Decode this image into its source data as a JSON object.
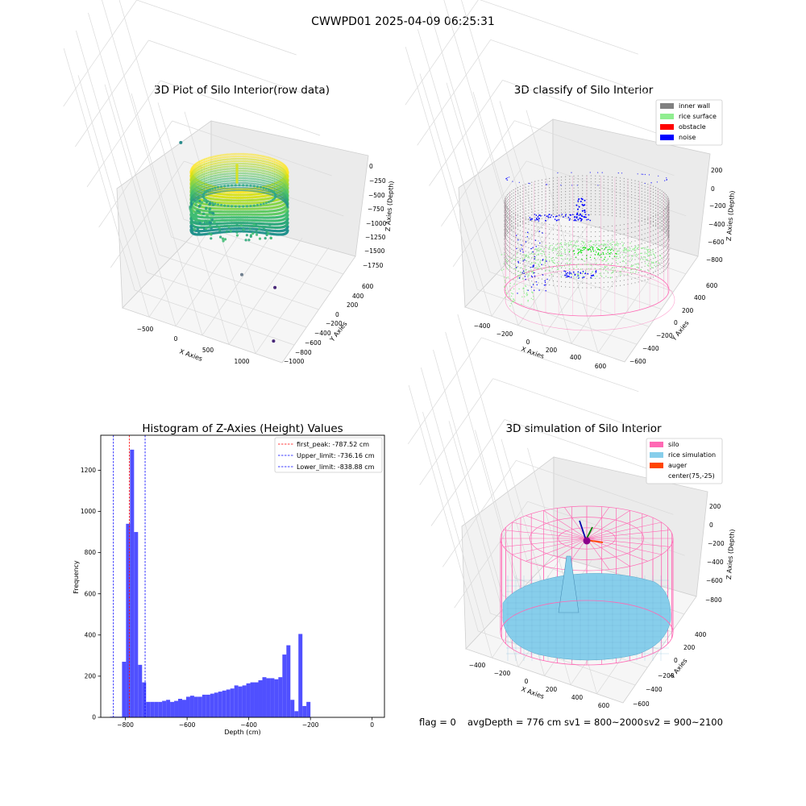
{
  "figure": {
    "suptitle": "CWWPD01 2025-04-09 06:25:31",
    "status": {
      "flag": "flag = 0",
      "avg_depth": "avgDepth = 776 cm",
      "sv1": "sv1 = 800~2000",
      "sv2": "sv2 = 900~2100"
    }
  },
  "colors": {
    "inner_wall": "#808080",
    "rice_surface": "#90ee90",
    "obstacle": "#ff0000",
    "noise": "#0000ff",
    "silo": "#ff69b4",
    "rice_simulation": "#87ceeb",
    "auger": "#ff4500",
    "hist_bar": "#5050ff"
  },
  "chart_data": [
    {
      "type": "scatter",
      "title": "3D Plot of Silo Interior(row data)",
      "xlabel": "X Axies",
      "ylabel": "Y Axies",
      "zlabel": "Z Axies (Depth)",
      "x_ticks": [
        "−500",
        "0",
        "500",
        "1000"
      ],
      "y_ticks": [
        "600",
        "400",
        "200",
        "0",
        "−200",
        "−400",
        "−600",
        "−800",
        "−1000"
      ],
      "z_ticks": [
        "0",
        "−250",
        "−500",
        "−750",
        "−1000",
        "−1250",
        "−1500",
        "−1750"
      ],
      "xlim": [
        -750,
        1250
      ],
      "ylim": [
        -1050,
        650
      ],
      "zlim": [
        -1850,
        100
      ],
      "colormap": "viridis",
      "outliers": [
        {
          "x": -550,
          "y": -900,
          "z": -1800
        },
        {
          "x": 100,
          "y": -700,
          "z": -1700
        },
        {
          "x": -300,
          "y": -600,
          "z": -1450
        },
        {
          "x": 1050,
          "y": 500,
          "z": -1250
        }
      ]
    },
    {
      "type": "scatter",
      "title": "3D classify of Silo Interior",
      "xlabel": "X Axies",
      "ylabel": "Y Axies",
      "zlabel": "Z Axies (Depth)",
      "x_ticks": [
        "−400",
        "−200",
        "0",
        "200",
        "400",
        "600"
      ],
      "y_ticks": [
        "600",
        "400",
        "200",
        "0",
        "−200",
        "−400",
        "−600"
      ],
      "z_ticks": [
        "200",
        "0",
        "−200",
        "−400",
        "−600",
        "−800"
      ],
      "xlim": [
        -500,
        700
      ],
      "ylim": [
        -650,
        650
      ],
      "zlim": [
        -950,
        280
      ],
      "legend_position": "upper-right",
      "legend": [
        {
          "label": "inner wall",
          "color": "#808080"
        },
        {
          "label": "rice surface",
          "color": "#90ee90"
        },
        {
          "label": "obstacle",
          "color": "#ff0000"
        },
        {
          "label": "noise",
          "color": "#0000ff"
        }
      ]
    },
    {
      "type": "bar",
      "title": "Histogram of Z-Axies (Height) Values",
      "xlabel": "Depth (cm)",
      "ylabel": "Frequency",
      "xlim": [
        -880,
        40
      ],
      "ylim": [
        0,
        1370
      ],
      "x_ticks": [
        -800,
        -600,
        -400,
        -200,
        0
      ],
      "y_ticks": [
        0,
        200,
        400,
        600,
        800,
        1000,
        1200
      ],
      "bin_start": -850,
      "bin_width": 13,
      "values": [
        3,
        3,
        3,
        270,
        940,
        1300,
        900,
        255,
        170,
        75,
        75,
        75,
        75,
        80,
        85,
        75,
        80,
        90,
        85,
        100,
        105,
        100,
        100,
        110,
        110,
        115,
        120,
        125,
        130,
        135,
        140,
        155,
        150,
        155,
        165,
        170,
        170,
        180,
        195,
        190,
        190,
        185,
        195,
        305,
        350,
        85,
        30,
        405,
        55,
        75
      ],
      "lines": [
        {
          "label": "first_peak: -787.52 cm",
          "x": -787.52,
          "color": "#ff0000"
        },
        {
          "label": "Upper_limit: -736.16 cm",
          "x": -736.16,
          "color": "#0000ff"
        },
        {
          "label": "Lower_limit: -838.88 cm",
          "x": -838.88,
          "color": "#0000ff"
        }
      ],
      "legend_position": "upper-right"
    },
    {
      "type": "surface",
      "title": "3D simulation of Silo Interior",
      "xlabel": "X Axies",
      "ylabel": "Y Axies",
      "zlabel": "Z Axies (Depth)",
      "x_ticks": [
        "−400",
        "−200",
        "0",
        "200",
        "400",
        "600"
      ],
      "y_ticks": [
        "400",
        "200",
        "0",
        "−200",
        "−400",
        "−600"
      ],
      "z_ticks": [
        "200",
        "0",
        "−200",
        "−400",
        "−600",
        "−800"
      ],
      "xlim": [
        -500,
        700
      ],
      "ylim": [
        -650,
        450
      ],
      "zlim": [
        -950,
        280
      ],
      "legend_position": "upper-right",
      "legend": [
        {
          "label": "silo",
          "color": "#ff69b4"
        },
        {
          "label": "rice simulation",
          "color": "#87ceeb"
        },
        {
          "label": "auger",
          "color": "#ff4500"
        },
        {
          "label": "center(75,-25)",
          "color": "#ffffff"
        }
      ],
      "center": {
        "x": 75,
        "y": -25
      }
    }
  ]
}
